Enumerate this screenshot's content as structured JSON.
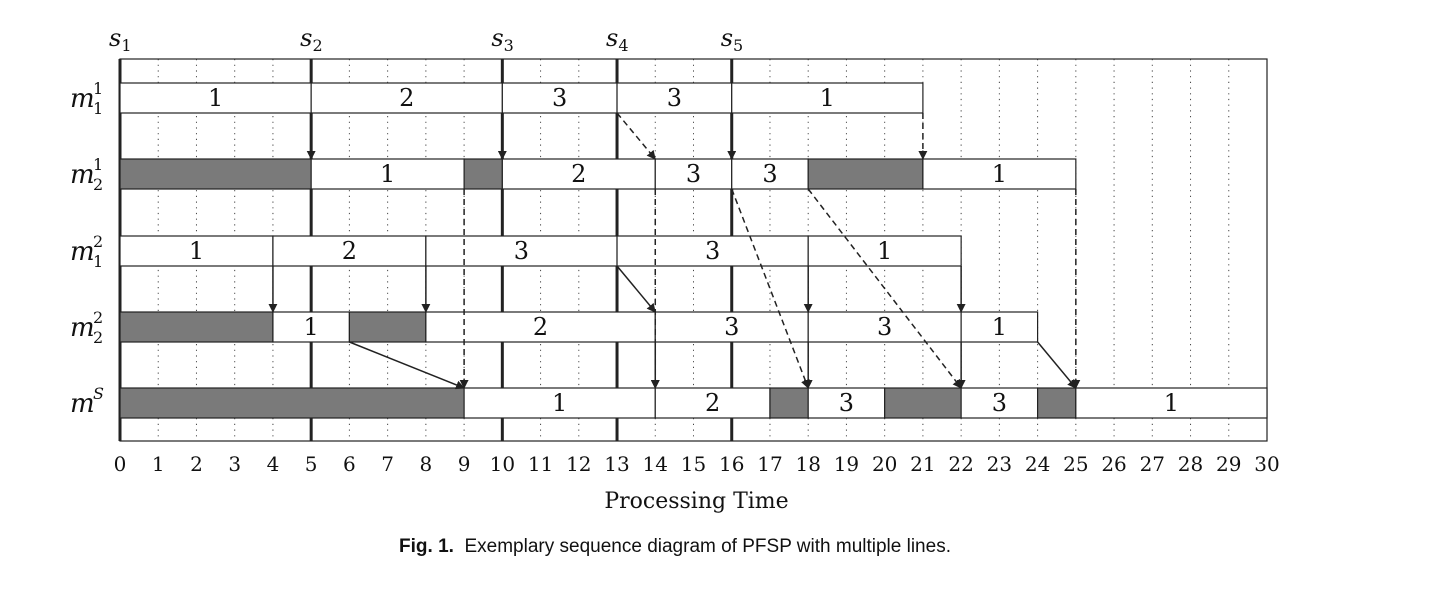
{
  "diagram": {
    "stage_labels": [
      {
        "base": "s",
        "sub": "1",
        "t": 0
      },
      {
        "base": "s",
        "sub": "2",
        "t": 5
      },
      {
        "base": "s",
        "sub": "3",
        "t": 10
      },
      {
        "base": "s",
        "sub": "4",
        "t": 13
      },
      {
        "base": "s",
        "sub": "5",
        "t": 16
      }
    ],
    "rows": [
      {
        "base": "m",
        "sub": "1",
        "sup": "1",
        "blocks": [
          {
            "start": 0,
            "end": 5,
            "label": "1",
            "idle": false
          },
          {
            "start": 5,
            "end": 10,
            "label": "2",
            "idle": false
          },
          {
            "start": 10,
            "end": 13,
            "label": "3",
            "idle": false
          },
          {
            "start": 13,
            "end": 16,
            "label": "3",
            "idle": false
          },
          {
            "start": 16,
            "end": 21,
            "label": "1",
            "idle": false
          }
        ]
      },
      {
        "base": "m",
        "sub": "2",
        "sup": "1",
        "blocks": [
          {
            "start": 0,
            "end": 5,
            "label": "",
            "idle": true
          },
          {
            "start": 5,
            "end": 9,
            "label": "1",
            "idle": false
          },
          {
            "start": 9,
            "end": 10,
            "label": "",
            "idle": true
          },
          {
            "start": 10,
            "end": 14,
            "label": "2",
            "idle": false
          },
          {
            "start": 14,
            "end": 16,
            "label": "3",
            "idle": false
          },
          {
            "start": 16,
            "end": 18,
            "label": "3",
            "idle": false
          },
          {
            "start": 18,
            "end": 21,
            "label": "",
            "idle": true
          },
          {
            "start": 21,
            "end": 25,
            "label": "1",
            "idle": false
          }
        ]
      },
      {
        "base": "m",
        "sub": "1",
        "sup": "2",
        "blocks": [
          {
            "start": 0,
            "end": 4,
            "label": "1",
            "idle": false
          },
          {
            "start": 4,
            "end": 8,
            "label": "2",
            "idle": false
          },
          {
            "start": 8,
            "end": 13,
            "label": "3",
            "idle": false
          },
          {
            "start": 13,
            "end": 18,
            "label": "3",
            "idle": false
          },
          {
            "start": 18,
            "end": 22,
            "label": "1",
            "idle": false
          }
        ]
      },
      {
        "base": "m",
        "sub": "2",
        "sup": "2",
        "blocks": [
          {
            "start": 0,
            "end": 4,
            "label": "",
            "idle": true
          },
          {
            "start": 4,
            "end": 6,
            "label": "1",
            "idle": false
          },
          {
            "start": 6,
            "end": 8,
            "label": "",
            "idle": true
          },
          {
            "start": 8,
            "end": 14,
            "label": "2",
            "idle": false
          },
          {
            "start": 14,
            "end": 18,
            "label": "3",
            "idle": false
          },
          {
            "start": 18,
            "end": 22,
            "label": "3",
            "idle": false
          },
          {
            "start": 22,
            "end": 24,
            "label": "1",
            "idle": false
          }
        ]
      },
      {
        "base": "m",
        "sub": "",
        "sup": "S",
        "blocks": [
          {
            "start": 0,
            "end": 9,
            "label": "",
            "idle": true
          },
          {
            "start": 9,
            "end": 14,
            "label": "1",
            "idle": false
          },
          {
            "start": 14,
            "end": 17,
            "label": "2",
            "idle": false
          },
          {
            "start": 17,
            "end": 18,
            "label": "",
            "idle": true
          },
          {
            "start": 18,
            "end": 20,
            "label": "3",
            "idle": false
          },
          {
            "start": 20,
            "end": 22,
            "label": "",
            "idle": true
          },
          {
            "start": 22,
            "end": 24,
            "label": "3",
            "idle": false
          },
          {
            "start": 24,
            "end": 25,
            "label": "",
            "idle": true
          },
          {
            "start": 25,
            "end": 30,
            "label": "1",
            "idle": false
          }
        ]
      }
    ],
    "arrows": [
      {
        "from_row": 0,
        "t0": 5,
        "to_row": 1,
        "t1": 5,
        "dashed": false
      },
      {
        "from_row": 0,
        "t0": 10,
        "to_row": 1,
        "t1": 10,
        "dashed": false
      },
      {
        "from_row": 0,
        "t0": 13,
        "to_row": 1,
        "t1": 14,
        "dashed": true
      },
      {
        "from_row": 0,
        "t0": 16,
        "to_row": 1,
        "t1": 16,
        "dashed": false
      },
      {
        "from_row": 0,
        "t0": 21,
        "to_row": 1,
        "t1": 21,
        "dashed": true
      },
      {
        "from_row": 2,
        "t0": 4,
        "to_row": 3,
        "t1": 4,
        "dashed": false
      },
      {
        "from_row": 2,
        "t0": 8,
        "to_row": 3,
        "t1": 8,
        "dashed": false
      },
      {
        "from_row": 2,
        "t0": 13,
        "to_row": 3,
        "t1": 14,
        "dashed": false
      },
      {
        "from_row": 2,
        "t0": 18,
        "to_row": 3,
        "t1": 18,
        "dashed": false
      },
      {
        "from_row": 2,
        "t0": 22,
        "to_row": 3,
        "t1": 22,
        "dashed": false
      },
      {
        "from_row": 1,
        "t0": 9,
        "to_row": 4,
        "t1": 9,
        "dashed": true
      },
      {
        "from_row": 1,
        "t0": 14,
        "to_row": 4,
        "t1": 14,
        "dashed": true
      },
      {
        "from_row": 1,
        "t0": 16,
        "to_row": 4,
        "t1": 18,
        "dashed": true
      },
      {
        "from_row": 1,
        "t0": 18,
        "to_row": 4,
        "t1": 22,
        "dashed": true
      },
      {
        "from_row": 1,
        "t0": 25,
        "to_row": 4,
        "t1": 25,
        "dashed": true
      },
      {
        "from_row": 3,
        "t0": 6,
        "to_row": 4,
        "t1": 9,
        "dashed": false
      },
      {
        "from_row": 3,
        "t0": 14,
        "to_row": 4,
        "t1": 14,
        "dashed": false
      },
      {
        "from_row": 3,
        "t0": 18,
        "to_row": 4,
        "t1": 18,
        "dashed": false
      },
      {
        "from_row": 3,
        "t0": 22,
        "to_row": 4,
        "t1": 22,
        "dashed": false
      },
      {
        "from_row": 3,
        "t0": 24,
        "to_row": 4,
        "t1": 25,
        "dashed": false
      }
    ],
    "x_ticks": [
      "0",
      "1",
      "2",
      "3",
      "4",
      "5",
      "6",
      "7",
      "8",
      "9",
      "10",
      "11",
      "12",
      "13",
      "14",
      "15",
      "16",
      "17",
      "18",
      "19",
      "20",
      "21",
      "22",
      "23",
      "24",
      "25",
      "26",
      "27",
      "28",
      "29",
      "30"
    ],
    "x_axis_label": "Processing Time",
    "colors": {
      "idle": "#7a7a7a",
      "line": "#222222"
    }
  },
  "caption": {
    "label": "Fig. 1.",
    "text": "Exemplary sequence diagram of PFSP with multiple lines."
  }
}
